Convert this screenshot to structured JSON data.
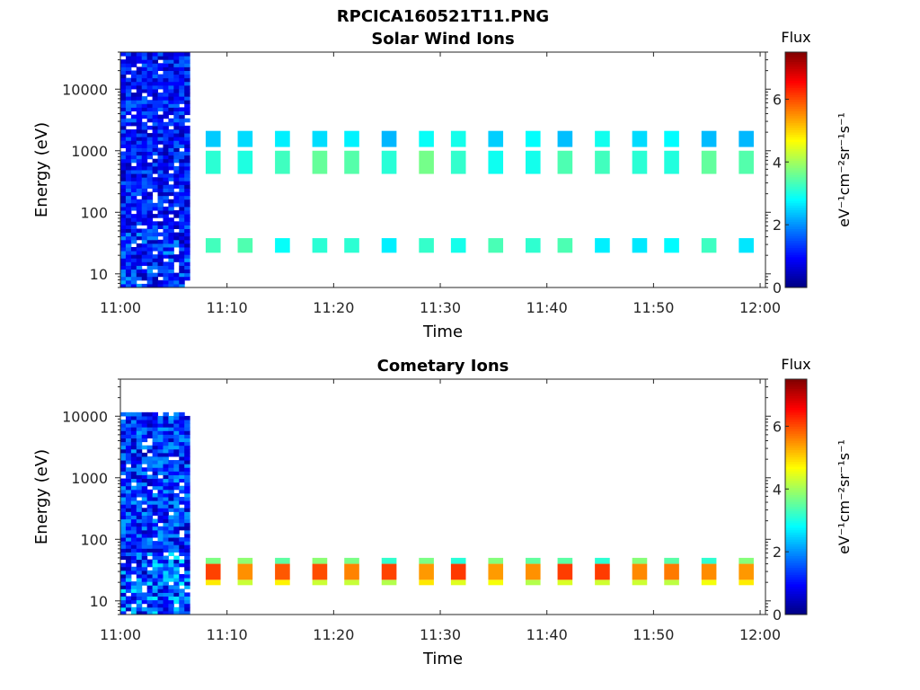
{
  "figure": {
    "suptitle": "RPCICA160521T11.PNG"
  },
  "colorbar": {
    "label": "Flux",
    "units": "eV⁻¹cm⁻²sr⁻¹s⁻¹",
    "ticks": [
      "0",
      "2",
      "4",
      "6"
    ],
    "range": [
      0,
      7.5
    ],
    "colormap": "jet"
  },
  "chart_data": [
    {
      "type": "heatmap",
      "title": "Solar Wind Ions",
      "xlabel": "Time",
      "ylabel": "Energy (eV)",
      "xticks": [
        "11:00",
        "11:10",
        "11:20",
        "11:30",
        "11:40",
        "11:50",
        "12:00"
      ],
      "yticks": [
        "10",
        "100",
        "1000",
        "10000"
      ],
      "yscale": "log",
      "ylim_eV": [
        6,
        40000
      ],
      "xlim_min": [
        0,
        60.5
      ],
      "burst": {
        "t_start_min": 0,
        "t_end_min": 6.5,
        "e_min_eV": 6,
        "e_max_eV": 40000,
        "flux_range": [
          0.3,
          1.8
        ]
      },
      "bands": [
        {
          "e_low_eV": 1150,
          "e_high_eV": 2100,
          "flux": 2.6
        },
        {
          "e_low_eV": 420,
          "e_high_eV": 1000,
          "flux": 3.3
        },
        {
          "e_low_eV": 22,
          "e_high_eV": 38,
          "flux": 3.0
        }
      ],
      "scan_times_min": [
        8,
        11,
        14.5,
        18,
        21,
        24.5,
        28,
        31,
        34.5,
        38,
        41,
        44.5,
        48,
        51,
        54.5,
        58
      ]
    },
    {
      "type": "heatmap",
      "title": "Cometary Ions",
      "xlabel": "Time",
      "ylabel": "Energy (eV)",
      "xticks": [
        "11:00",
        "11:10",
        "11:20",
        "11:30",
        "11:40",
        "11:50",
        "12:00"
      ],
      "yticks": [
        "10",
        "100",
        "1000",
        "10000"
      ],
      "yscale": "log",
      "ylim_eV": [
        6,
        40000
      ],
      "xlim_min": [
        0,
        60.5
      ],
      "burst": {
        "t_start_min": 0,
        "t_end_min": 6.5,
        "e_min_eV": 6,
        "e_max_eV": 11000,
        "flux_range": [
          0.3,
          2.2
        ]
      },
      "bands": [
        {
          "e_low_eV": 18,
          "e_high_eV": 22,
          "flux": 4.5
        },
        {
          "e_low_eV": 22,
          "e_high_eV": 40,
          "flux": 5.8
        },
        {
          "e_low_eV": 40,
          "e_high_eV": 50,
          "flux": 3.5
        }
      ],
      "scan_times_min": [
        8,
        11,
        14.5,
        18,
        21,
        24.5,
        28,
        31,
        34.5,
        38,
        41,
        44.5,
        48,
        51,
        54.5,
        58
      ]
    }
  ]
}
